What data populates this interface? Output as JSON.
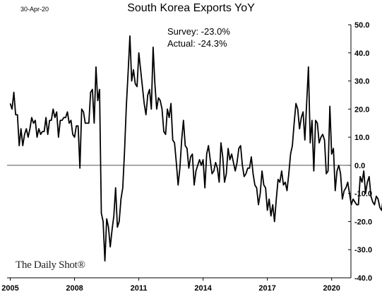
{
  "header": {
    "date": "30-Apr-20"
  },
  "watermark": "The Daily Shot®",
  "chart_data": {
    "type": "line",
    "title": "South Korea Exports YoY",
    "annotations": [
      "Survey: -23.0%",
      "Actual:  -24.3%"
    ],
    "xlabel": "",
    "ylabel": "",
    "ylim": [
      -40,
      50
    ],
    "xlim": [
      2004.85,
      2020.9
    ],
    "x_ticks": [
      2005,
      2008,
      2011,
      2014,
      2017,
      2020
    ],
    "x_tick_labels": [
      "2005",
      "2008",
      "2011",
      "2014",
      "2017",
      "2020"
    ],
    "y_ticks": [
      50,
      40,
      30,
      20,
      10,
      0,
      -10,
      -20,
      -30,
      -40
    ],
    "y_tick_labels": [
      "50.0",
      "40.0",
      "30.0",
      "20.0",
      "10.0",
      "0.0",
      "-10.0",
      "-20.0",
      "-30.0",
      "-40.0"
    ],
    "y_axis_position": "right",
    "grid": false,
    "zero_line": true,
    "line_color": "#000000",
    "highlight_color": "#e8141e",
    "series": [
      {
        "values": [
          22,
          20,
          26,
          18,
          18,
          7,
          13,
          7,
          11,
          13,
          10,
          13,
          17,
          15,
          16,
          10,
          13,
          11,
          12,
          12,
          17,
          11,
          16,
          16,
          20,
          17,
          19,
          10,
          16,
          16,
          17,
          17,
          19,
          15,
          16,
          11,
          10,
          14,
          14,
          -1,
          20,
          19,
          15,
          15,
          15,
          26,
          27,
          15,
          35,
          23,
          27,
          -17,
          -20,
          -34,
          -19,
          -22,
          -29,
          -23,
          -18,
          -8,
          -22,
          -20,
          -12,
          -8,
          5,
          21,
          33,
          46,
          30,
          34,
          29,
          28,
          40,
          34,
          28,
          22,
          18,
          25,
          27,
          20,
          42,
          29,
          20,
          24,
          23,
          20,
          12,
          11,
          20,
          17,
          22,
          9,
          8,
          1,
          -7,
          -1,
          9,
          16,
          7,
          6,
          -1,
          3,
          4,
          -7,
          -2,
          0,
          2,
          0,
          2,
          -8,
          4,
          7,
          2,
          -3,
          -2,
          1,
          -1,
          -6,
          8,
          3,
          -6,
          -3,
          6,
          2,
          4,
          1,
          -2,
          1,
          6,
          7,
          0,
          -4,
          -3,
          -1,
          -1,
          3,
          -3,
          -7,
          -8,
          -14,
          -10,
          -2,
          -7,
          -8,
          -16,
          -12,
          -18,
          -14,
          -20,
          -12,
          -5,
          -6,
          -2,
          -7,
          -6,
          -9,
          -3,
          4,
          7,
          15,
          22,
          20,
          13,
          17,
          19,
          9,
          22,
          35,
          8,
          16,
          -2,
          16,
          15,
          8,
          10,
          11,
          9,
          -3,
          -2,
          21,
          4,
          6,
          -9,
          -2,
          0,
          -3,
          -12,
          -9,
          -8,
          -6,
          -10,
          -14,
          -12,
          -13,
          -14,
          -14,
          -4,
          -6,
          -2,
          -10,
          -6,
          -4,
          -11,
          -13,
          -14,
          -11,
          -12,
          -15,
          -16,
          -11,
          -5,
          0,
          -8,
          -3,
          7,
          6,
          4,
          -24.3
        ]
      }
    ]
  }
}
